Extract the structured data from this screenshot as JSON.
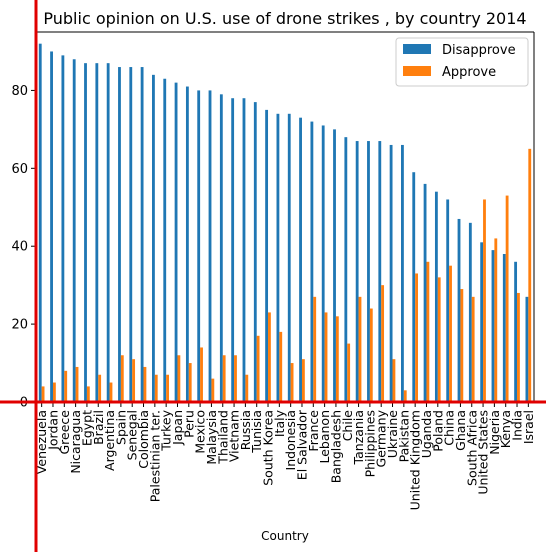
{
  "chart_data": {
    "type": "bar",
    "title": "Public opinion on U.S. use of drone strikes , by country 2014",
    "xlabel": "Country",
    "ylabel": "",
    "ylim": [
      0,
      95
    ],
    "yticks": [
      0,
      20,
      40,
      60,
      80
    ],
    "grid": false,
    "legend_position": "top-right",
    "categories": [
      "Venezuela",
      "Jordan",
      "Greece",
      "Nicaragua",
      "Egypt",
      "Brazil",
      "Argentina",
      "Spain",
      "Senegal",
      "Colombia",
      "Palestinian ter.",
      "Turkey",
      "Japan",
      "Peru",
      "Mexico",
      "Malaysia",
      "Thailand",
      "Vietnam",
      "Russia",
      "Tunisia",
      "South Korea",
      "Italy",
      "Indonesia",
      "El Salvador",
      "France",
      "Lebanon",
      "Bangladesh",
      "Chile",
      "Tanzania",
      "Philippines",
      "Germany",
      "Ukraine",
      "Pakistan",
      "United Kingdom",
      "Uganda",
      "Poland",
      "China",
      "Ghana",
      "South Africa",
      "United States",
      "Nigeria",
      "Kenya",
      "India",
      "Israel"
    ],
    "series": [
      {
        "name": "Disapprove",
        "color": "#1f77b4",
        "values": [
          92,
          90,
          89,
          88,
          87,
          87,
          87,
          86,
          86,
          86,
          84,
          83,
          82,
          81,
          80,
          80,
          79,
          78,
          78,
          77,
          75,
          74,
          74,
          73,
          72,
          71,
          70,
          68,
          67,
          67,
          67,
          66,
          66,
          59,
          56,
          54,
          52,
          47,
          46,
          41,
          39,
          38,
          36,
          27
        ]
      },
      {
        "name": "Approve",
        "color": "#ff7f0e",
        "values": [
          4,
          5,
          8,
          9,
          4,
          7,
          5,
          12,
          11,
          9,
          7,
          7,
          12,
          10,
          14,
          6,
          12,
          12,
          7,
          17,
          23,
          18,
          10,
          11,
          27,
          23,
          22,
          15,
          27,
          24,
          30,
          11,
          3,
          33,
          36,
          32,
          35,
          29,
          27,
          52,
          42,
          53,
          28,
          65
        ]
      }
    ]
  }
}
